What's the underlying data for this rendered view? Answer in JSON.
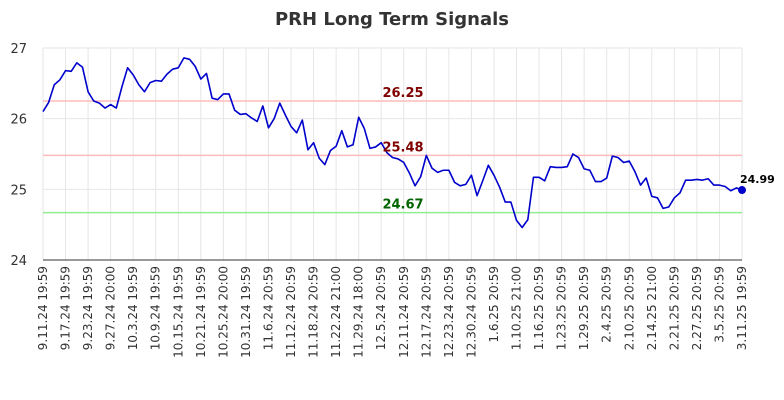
{
  "chart_data": {
    "type": "line",
    "title": "PRH Long Term Signals",
    "ylim": [
      24,
      27
    ],
    "yticks": [
      "24",
      "25",
      "26",
      "27"
    ],
    "x_tick_labels": [
      "9.11.24 19:59",
      "9.17.24 19:59",
      "9.23.24 19:59",
      "9.27.24 20:00",
      "10.3.24 19:59",
      "10.9.24 19:59",
      "10.15.24 19:59",
      "10.21.24 19:59",
      "10.25.24 20:00",
      "10.31.24 19:59",
      "11.6.24 20:59",
      "11.12.24 20:59",
      "11.18.24 20:59",
      "11.22.24 21:00",
      "11.29.24 18:00",
      "12.5.24 20:59",
      "12.11.24 20:59",
      "12.17.24 20:59",
      "12.23.24 20:59",
      "12.30.24 20:59",
      "1.6.25 20:59",
      "1.10.25 21:00",
      "1.16.25 20:59",
      "1.23.25 20:59",
      "1.29.25 20:59",
      "2.4.25 20:59",
      "2.10.25 20:59",
      "2.14.25 21:00",
      "2.21.25 20:59",
      "2.27.25 20:59",
      "3.5.25 20:59",
      "3.11.25 19:59"
    ],
    "series": [
      {
        "color": "#0000cc",
        "values": [
          26.1,
          26.23,
          26.48,
          26.55,
          26.68,
          26.67,
          26.79,
          26.73,
          26.38,
          26.25,
          26.22,
          26.15,
          26.2,
          26.15,
          26.45,
          26.72,
          26.62,
          26.48,
          26.38,
          26.51,
          26.54,
          26.53,
          26.63,
          26.7,
          26.72,
          26.86,
          26.84,
          26.74,
          26.56,
          26.64,
          26.29,
          26.27,
          26.35,
          26.35,
          26.12,
          26.06,
          26.07,
          26.01,
          25.96,
          26.18,
          25.87,
          26.0,
          26.22,
          26.05,
          25.89,
          25.8,
          25.98,
          25.56,
          25.66,
          25.44,
          25.35,
          25.55,
          25.61,
          25.83,
          25.6,
          25.63,
          26.02,
          25.86,
          25.58,
          25.6,
          25.66,
          25.52,
          25.45,
          25.43,
          25.38,
          25.23,
          25.05,
          25.18,
          25.48,
          25.3,
          25.24,
          25.27,
          25.27,
          25.1,
          25.05,
          25.07,
          25.2,
          24.91,
          25.12,
          25.34,
          25.2,
          25.03,
          24.82,
          24.82,
          24.56,
          24.46,
          24.57,
          25.17,
          25.17,
          25.12,
          25.32,
          25.31,
          25.31,
          25.32,
          25.5,
          25.45,
          25.29,
          25.27,
          25.11,
          25.11,
          25.16,
          25.47,
          25.45,
          25.38,
          25.4,
          25.25,
          25.06,
          25.16,
          24.9,
          24.88,
          24.73,
          24.75,
          24.88,
          24.95,
          25.13,
          25.13,
          25.14,
          25.13,
          25.15,
          25.06,
          25.06,
          25.04,
          24.98,
          25.02,
          24.99
        ]
      }
    ],
    "reference_lines": [
      {
        "value": 26.25,
        "label": "26.25",
        "line_color": "#ffbbbb",
        "label_color": "#800000"
      },
      {
        "value": 25.48,
        "label": "25.48",
        "line_color": "#ffbbbb",
        "label_color": "#800000"
      },
      {
        "value": 24.67,
        "label": "24.67",
        "line_color": "#90ee90",
        "label_color": "#006400"
      }
    ],
    "last_value_label": "24.99",
    "grid": true,
    "legend": "none"
  }
}
